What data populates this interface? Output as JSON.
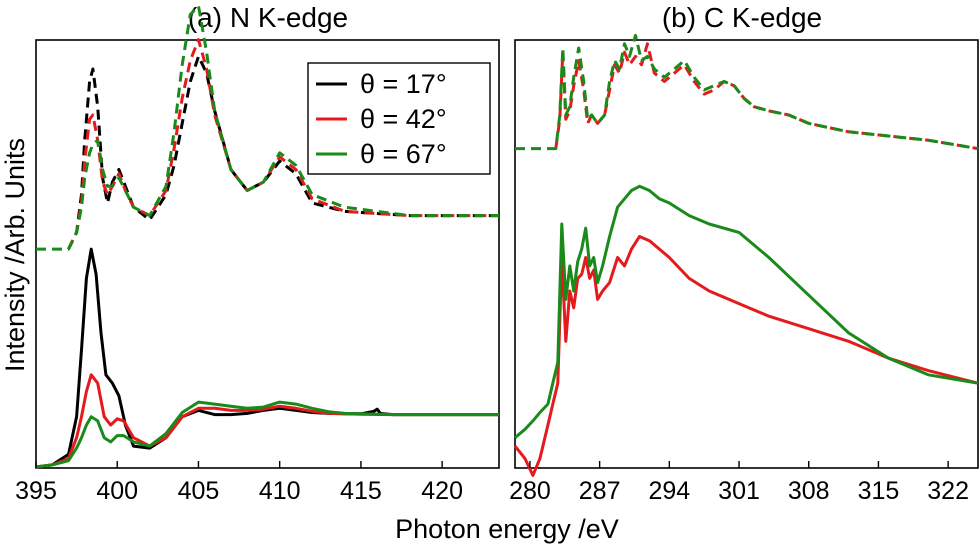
{
  "figure": {
    "xlabel": "Photon energy /eV",
    "ylabel": "Intensity /Arb. Units"
  },
  "legend": {
    "entries": [
      {
        "label": "θ  = 17°",
        "color": "#000000"
      },
      {
        "label": "θ  = 42°",
        "color": "#e41a1c"
      },
      {
        "label": "θ  = 67°",
        "color": "#1a8a1a"
      }
    ]
  },
  "chart_data": [
    {
      "type": "line",
      "title": "(a) N K-edge",
      "xlim": [
        395,
        423.5
      ],
      "ylim": [
        0,
        1
      ],
      "xticks": [
        395,
        400,
        405,
        410,
        415,
        420
      ],
      "yticks": [],
      "grid": false,
      "legend_position": "top-right",
      "series": [
        {
          "angle": "17°",
          "style": "solid",
          "color": "#000000",
          "x": [
            395,
            396,
            397,
            397.5,
            397.8,
            398.1,
            398.4,
            398.7,
            399.0,
            399.3,
            399.7,
            400.1,
            400.5,
            401,
            402,
            403,
            404,
            405,
            406,
            407,
            408,
            409,
            410,
            411,
            412,
            413,
            414,
            415,
            415.8,
            416.0,
            416.2,
            417,
            418,
            420,
            423.5
          ],
          "y": [
            0.0,
            0.005,
            0.03,
            0.12,
            0.28,
            0.45,
            0.52,
            0.46,
            0.32,
            0.22,
            0.2,
            0.17,
            0.1,
            0.05,
            0.045,
            0.07,
            0.12,
            0.135,
            0.125,
            0.125,
            0.128,
            0.135,
            0.14,
            0.135,
            0.13,
            0.128,
            0.127,
            0.127,
            0.133,
            0.138,
            0.128,
            0.125,
            0.125,
            0.125,
            0.125
          ]
        },
        {
          "angle": "42°",
          "style": "solid",
          "color": "#e41a1c",
          "x": [
            395,
            396,
            397,
            397.5,
            397.8,
            398.1,
            398.4,
            398.8,
            399.2,
            399.6,
            400.0,
            400.4,
            401,
            402,
            403,
            404,
            405,
            406,
            407,
            408,
            409,
            410,
            411,
            412,
            413,
            414,
            415,
            417,
            420,
            423.5
          ],
          "y": [
            0.0,
            0.005,
            0.02,
            0.07,
            0.12,
            0.18,
            0.22,
            0.2,
            0.12,
            0.1,
            0.115,
            0.11,
            0.07,
            0.05,
            0.07,
            0.12,
            0.14,
            0.14,
            0.135,
            0.135,
            0.138,
            0.145,
            0.14,
            0.133,
            0.128,
            0.127,
            0.126,
            0.125,
            0.125,
            0.125
          ]
        },
        {
          "angle": "67°",
          "style": "solid",
          "color": "#1a8a1a",
          "x": [
            395,
            396,
            397,
            397.5,
            397.8,
            398.1,
            398.4,
            398.8,
            399.2,
            399.6,
            400.0,
            400.4,
            401,
            402,
            403,
            404,
            405,
            406,
            407,
            408,
            409,
            410,
            411,
            412,
            413,
            414,
            415,
            417,
            420,
            423.5
          ],
          "y": [
            0.0,
            0.005,
            0.015,
            0.045,
            0.07,
            0.1,
            0.12,
            0.11,
            0.07,
            0.06,
            0.075,
            0.075,
            0.06,
            0.05,
            0.08,
            0.13,
            0.155,
            0.15,
            0.145,
            0.14,
            0.143,
            0.155,
            0.15,
            0.14,
            0.132,
            0.128,
            0.127,
            0.125,
            0.125,
            0.125
          ]
        },
        {
          "angle": "17°",
          "style": "dashed",
          "color": "#000000",
          "x": [
            397.0,
            397.5,
            397.8,
            398.0,
            398.3,
            398.5,
            398.8,
            399.1,
            399.4,
            399.7,
            400.1,
            400.5,
            401,
            402,
            403,
            403.5,
            404,
            404.5,
            405,
            405.5,
            406,
            407,
            408,
            409,
            410,
            411,
            412,
            414,
            416,
            418,
            420,
            423.5
          ],
          "y": [
            0.52,
            0.56,
            0.65,
            0.78,
            0.92,
            0.95,
            0.86,
            0.69,
            0.63,
            0.68,
            0.71,
            0.67,
            0.62,
            0.59,
            0.65,
            0.72,
            0.82,
            0.92,
            0.98,
            0.94,
            0.85,
            0.71,
            0.66,
            0.68,
            0.73,
            0.7,
            0.63,
            0.61,
            0.605,
            0.6,
            0.6,
            0.6
          ]
        },
        {
          "angle": "42°",
          "style": "dashed",
          "color": "#e41a1c",
          "x": [
            397.0,
            397.5,
            397.8,
            398.0,
            398.3,
            398.5,
            398.8,
            399.1,
            399.4,
            399.7,
            400.1,
            400.5,
            401,
            402,
            403,
            403.5,
            404,
            404.5,
            405,
            405.5,
            406,
            407,
            408,
            409,
            410,
            411,
            412,
            414,
            416,
            418,
            420,
            423.5
          ],
          "y": [
            0.52,
            0.56,
            0.63,
            0.73,
            0.83,
            0.84,
            0.78,
            0.68,
            0.65,
            0.67,
            0.7,
            0.66,
            0.62,
            0.6,
            0.66,
            0.76,
            0.88,
            0.97,
            1.02,
            0.95,
            0.84,
            0.71,
            0.66,
            0.68,
            0.74,
            0.71,
            0.64,
            0.61,
            0.605,
            0.6,
            0.6,
            0.6
          ]
        },
        {
          "angle": "67°",
          "style": "dashed",
          "color": "#1a8a1a",
          "x": [
            395.0,
            396.0,
            397.0,
            397.5,
            397.8,
            398.0,
            398.3,
            398.5,
            398.8,
            399.1,
            399.4,
            399.7,
            400.1,
            400.5,
            401,
            402,
            403,
            403.5,
            404,
            404.5,
            405,
            405.5,
            406,
            407,
            408,
            409,
            410,
            411,
            412,
            414,
            416,
            418,
            420,
            423.5
          ],
          "y": [
            0.52,
            0.52,
            0.52,
            0.56,
            0.62,
            0.69,
            0.75,
            0.77,
            0.78,
            0.71,
            0.67,
            0.67,
            0.69,
            0.66,
            0.62,
            0.6,
            0.67,
            0.8,
            0.96,
            1.08,
            1.1,
            0.99,
            0.85,
            0.71,
            0.66,
            0.68,
            0.75,
            0.72,
            0.65,
            0.62,
            0.61,
            0.6,
            0.6,
            0.6
          ]
        }
      ]
    },
    {
      "type": "line",
      "title": "(b) C K-edge",
      "xlim": [
        278.5,
        325
      ],
      "ylim": [
        0,
        1
      ],
      "xticks": [
        280,
        287,
        294,
        301,
        308,
        315,
        322
      ],
      "yticks": [],
      "grid": false,
      "series": [
        {
          "angle": "42°",
          "style": "solid",
          "color": "#e41a1c",
          "x": [
            278.5,
            279.5,
            280.3,
            281,
            281.8,
            282.3,
            282.8,
            283.2,
            283.6,
            284.0,
            284.4,
            284.8,
            285.2,
            285.6,
            286.0,
            286.4,
            286.8,
            287.3,
            288.0,
            288.8,
            289.5,
            290.2,
            291.0,
            292.0,
            293,
            294,
            296,
            298,
            301,
            304,
            308,
            312,
            316,
            320,
            325
          ],
          "y": [
            0.05,
            0.02,
            -0.02,
            0.02,
            0.1,
            0.15,
            0.2,
            0.5,
            0.3,
            0.42,
            0.38,
            0.45,
            0.46,
            0.5,
            0.45,
            0.47,
            0.4,
            0.42,
            0.44,
            0.5,
            0.48,
            0.52,
            0.55,
            0.54,
            0.52,
            0.5,
            0.45,
            0.42,
            0.39,
            0.36,
            0.33,
            0.3,
            0.26,
            0.23,
            0.2
          ]
        },
        {
          "angle": "67°",
          "style": "solid",
          "color": "#1a8a1a",
          "x": [
            278.5,
            279.5,
            280.3,
            281,
            281.8,
            282.3,
            282.8,
            283.2,
            283.6,
            284.0,
            284.4,
            284.8,
            285.2,
            285.6,
            286.0,
            286.4,
            286.8,
            287.3,
            288.0,
            288.8,
            289.5,
            290.2,
            291.0,
            292.0,
            293,
            294,
            296,
            298,
            301,
            304,
            308,
            312,
            316,
            320,
            325
          ],
          "y": [
            0.07,
            0.09,
            0.11,
            0.13,
            0.15,
            0.2,
            0.25,
            0.58,
            0.4,
            0.48,
            0.42,
            0.49,
            0.52,
            0.57,
            0.48,
            0.5,
            0.44,
            0.48,
            0.55,
            0.62,
            0.64,
            0.66,
            0.67,
            0.66,
            0.64,
            0.63,
            0.6,
            0.58,
            0.56,
            0.5,
            0.41,
            0.32,
            0.26,
            0.22,
            0.2
          ]
        },
        {
          "angle": "42°",
          "style": "dashed",
          "color": "#e41a1c",
          "x": [
            282.6,
            283.0,
            283.3,
            283.6,
            284.0,
            284.4,
            284.9,
            285.4,
            285.8,
            286.2,
            286.8,
            287.5,
            288.0,
            288.5,
            289.0,
            289.5,
            290,
            290.6,
            291.2,
            291.8,
            292.5,
            293.5,
            294.5,
            295.5,
            296.5,
            297.5,
            298.5,
            299.5,
            300.5,
            301.5,
            302.5,
            304,
            306,
            308,
            312,
            316,
            320,
            325
          ],
          "y": [
            0.76,
            0.83,
            0.99,
            0.83,
            0.85,
            0.91,
            0.97,
            0.9,
            0.82,
            0.84,
            0.82,
            0.84,
            0.9,
            0.96,
            0.94,
            0.99,
            0.96,
            0.98,
            0.96,
            1.01,
            0.94,
            0.92,
            0.94,
            0.96,
            0.92,
            0.89,
            0.9,
            0.92,
            0.91,
            0.88,
            0.86,
            0.85,
            0.84,
            0.82,
            0.8,
            0.79,
            0.78,
            0.76
          ]
        },
        {
          "angle": "67°",
          "style": "dashed",
          "color": "#1a8a1a",
          "x": [
            278.5,
            281.0,
            282.6,
            283.0,
            283.3,
            283.6,
            284.0,
            284.4,
            284.9,
            285.4,
            285.8,
            286.2,
            286.8,
            287.5,
            288.0,
            288.5,
            289.0,
            289.5,
            290,
            290.6,
            291.2,
            291.8,
            292.5,
            293.5,
            294.5,
            295.5,
            296.5,
            297.5,
            298.5,
            299.5,
            300.5,
            301.5,
            302.5,
            304,
            306,
            308,
            312,
            316,
            320,
            325
          ],
          "y": [
            0.76,
            0.76,
            0.76,
            0.84,
            1.0,
            0.84,
            0.86,
            0.93,
            1.0,
            0.92,
            0.83,
            0.84,
            0.82,
            0.84,
            0.92,
            0.97,
            0.95,
            1.01,
            0.98,
            1.03,
            0.97,
            0.98,
            0.95,
            0.93,
            0.95,
            0.97,
            0.93,
            0.9,
            0.91,
            0.92,
            0.91,
            0.88,
            0.86,
            0.85,
            0.84,
            0.82,
            0.8,
            0.79,
            0.78,
            0.76
          ]
        }
      ]
    }
  ]
}
